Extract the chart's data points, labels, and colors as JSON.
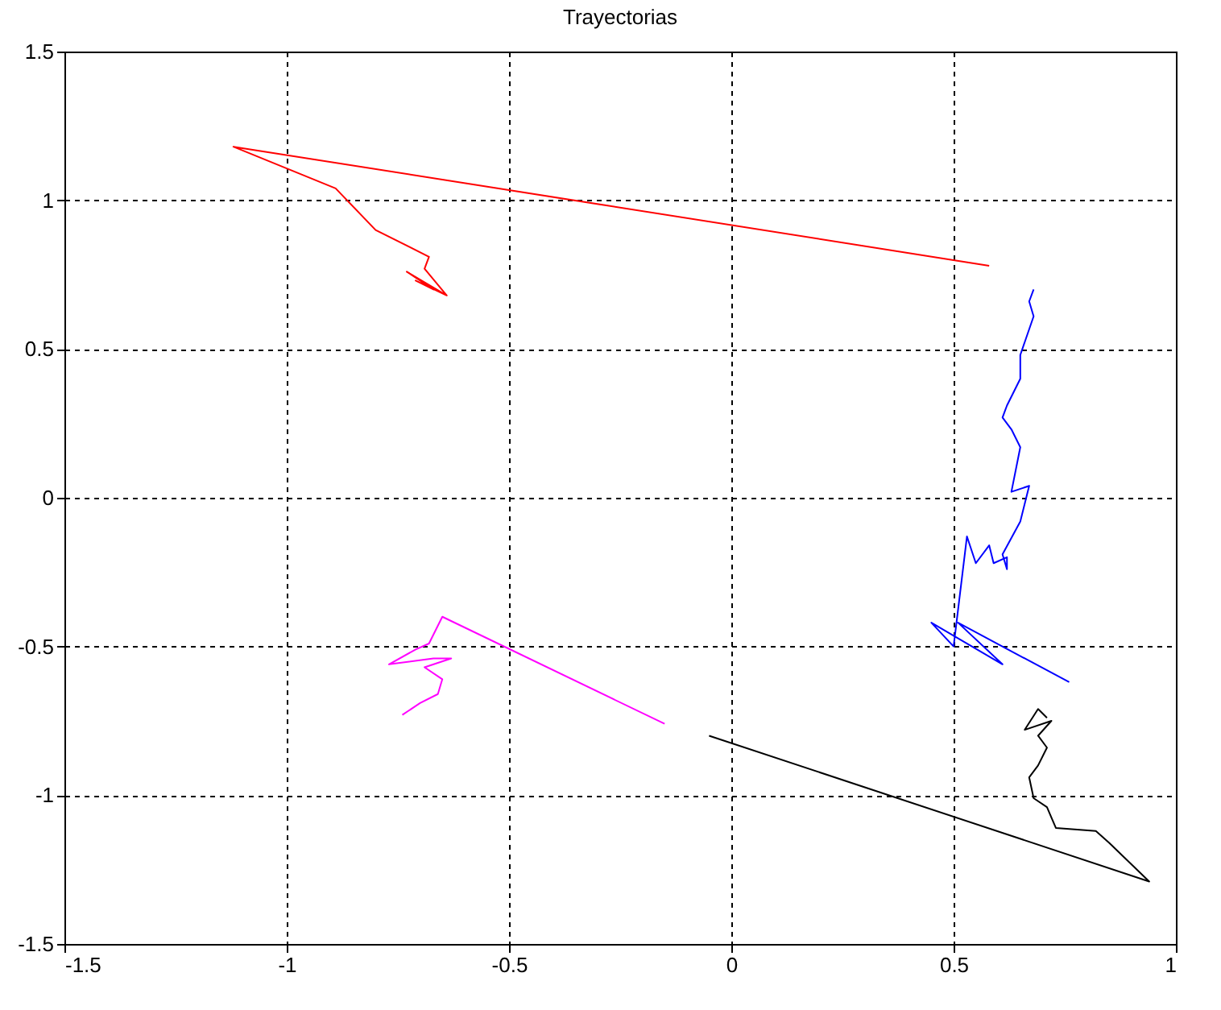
{
  "chart_data": {
    "type": "line",
    "title": "Trayectorias",
    "xlim": [
      -1.5,
      1
    ],
    "ylim": [
      -1.5,
      1.5
    ],
    "xticks": [
      -1.5,
      -1,
      -0.5,
      0,
      0.5,
      1
    ],
    "yticks": [
      -1.5,
      -1,
      -0.5,
      0,
      0.5,
      1,
      1.5
    ],
    "grid": true,
    "series": [
      {
        "color": "#ff0000",
        "x": [
          0.58,
          -1.12,
          -0.89,
          -0.8,
          -0.68,
          -0.69,
          -0.64,
          -0.73,
          -0.67,
          -0.71,
          -0.64
        ],
        "values": [
          0.78,
          1.18,
          1.04,
          0.9,
          0.81,
          0.77,
          0.68,
          0.76,
          0.7,
          0.73,
          0.68
        ]
      },
      {
        "color": "#0000ff",
        "x": [
          0.76,
          0.51,
          0.61,
          0.45,
          0.5,
          0.53,
          0.55,
          0.58,
          0.59,
          0.62,
          0.62,
          0.61,
          0.65,
          0.67,
          0.63,
          0.65,
          0.63,
          0.61,
          0.62,
          0.65,
          0.65,
          0.68,
          0.67,
          0.68
        ],
        "values": [
          -0.62,
          -0.42,
          -0.56,
          -0.42,
          -0.5,
          -0.13,
          -0.22,
          -0.16,
          -0.22,
          -0.2,
          -0.24,
          -0.19,
          -0.08,
          0.04,
          0.02,
          0.17,
          0.23,
          0.27,
          0.31,
          0.4,
          0.48,
          0.61,
          0.66,
          0.7
        ]
      },
      {
        "color": "#ff00ff",
        "x": [
          -0.15,
          -0.65,
          -0.68,
          -0.71,
          -0.77,
          -0.67,
          -0.63,
          -0.69,
          -0.65,
          -0.66,
          -0.7,
          -0.74
        ],
        "values": [
          -0.76,
          -0.4,
          -0.49,
          -0.51,
          -0.56,
          -0.54,
          -0.54,
          -0.57,
          -0.61,
          -0.66,
          -0.69,
          -0.73
        ]
      },
      {
        "color": "#000000",
        "x": [
          -0.05,
          0.94,
          0.85,
          0.82,
          0.73,
          0.71,
          0.68,
          0.67,
          0.69,
          0.71,
          0.69,
          0.72,
          0.66,
          0.69,
          0.71
        ],
        "values": [
          -0.8,
          -1.29,
          -1.16,
          -1.12,
          -1.11,
          -1.04,
          -1.01,
          -0.94,
          -0.9,
          -0.84,
          -0.8,
          -0.75,
          -0.78,
          -0.71,
          -0.74
        ]
      }
    ]
  }
}
